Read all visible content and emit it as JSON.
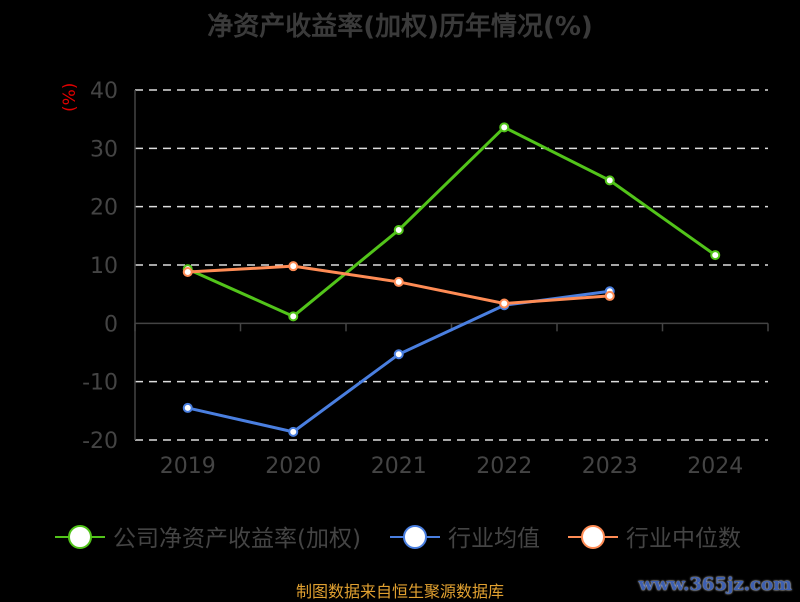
{
  "chart_data": {
    "type": "line",
    "title": "净资产收益率(加权)历年情况(%)",
    "ylabel": "(%)",
    "xlabel": "",
    "categories": [
      "2019",
      "2020",
      "2021",
      "2022",
      "2023",
      "2024"
    ],
    "ylim": [
      -20,
      40
    ],
    "yticks": [
      -20,
      -10,
      0,
      10,
      20,
      30,
      40
    ],
    "grid": true,
    "legend_position": "bottom",
    "series": [
      {
        "name": "公司净资产收益率(加权)",
        "color": "#52c41a",
        "values": [
          9.3,
          1.2,
          16.0,
          33.6,
          24.5,
          11.7
        ]
      },
      {
        "name": "行业均值",
        "color": "#4a7fe0",
        "values": [
          -14.5,
          -18.6,
          -5.3,
          3.1,
          5.5,
          null
        ]
      },
      {
        "name": "行业中位数",
        "color": "#ff8c55",
        "values": [
          8.8,
          9.8,
          7.1,
          3.4,
          4.7,
          null
        ]
      }
    ]
  },
  "footer": {
    "source": "制图数据来自恒生聚源数据库",
    "watermark": "www.365jz.com"
  }
}
